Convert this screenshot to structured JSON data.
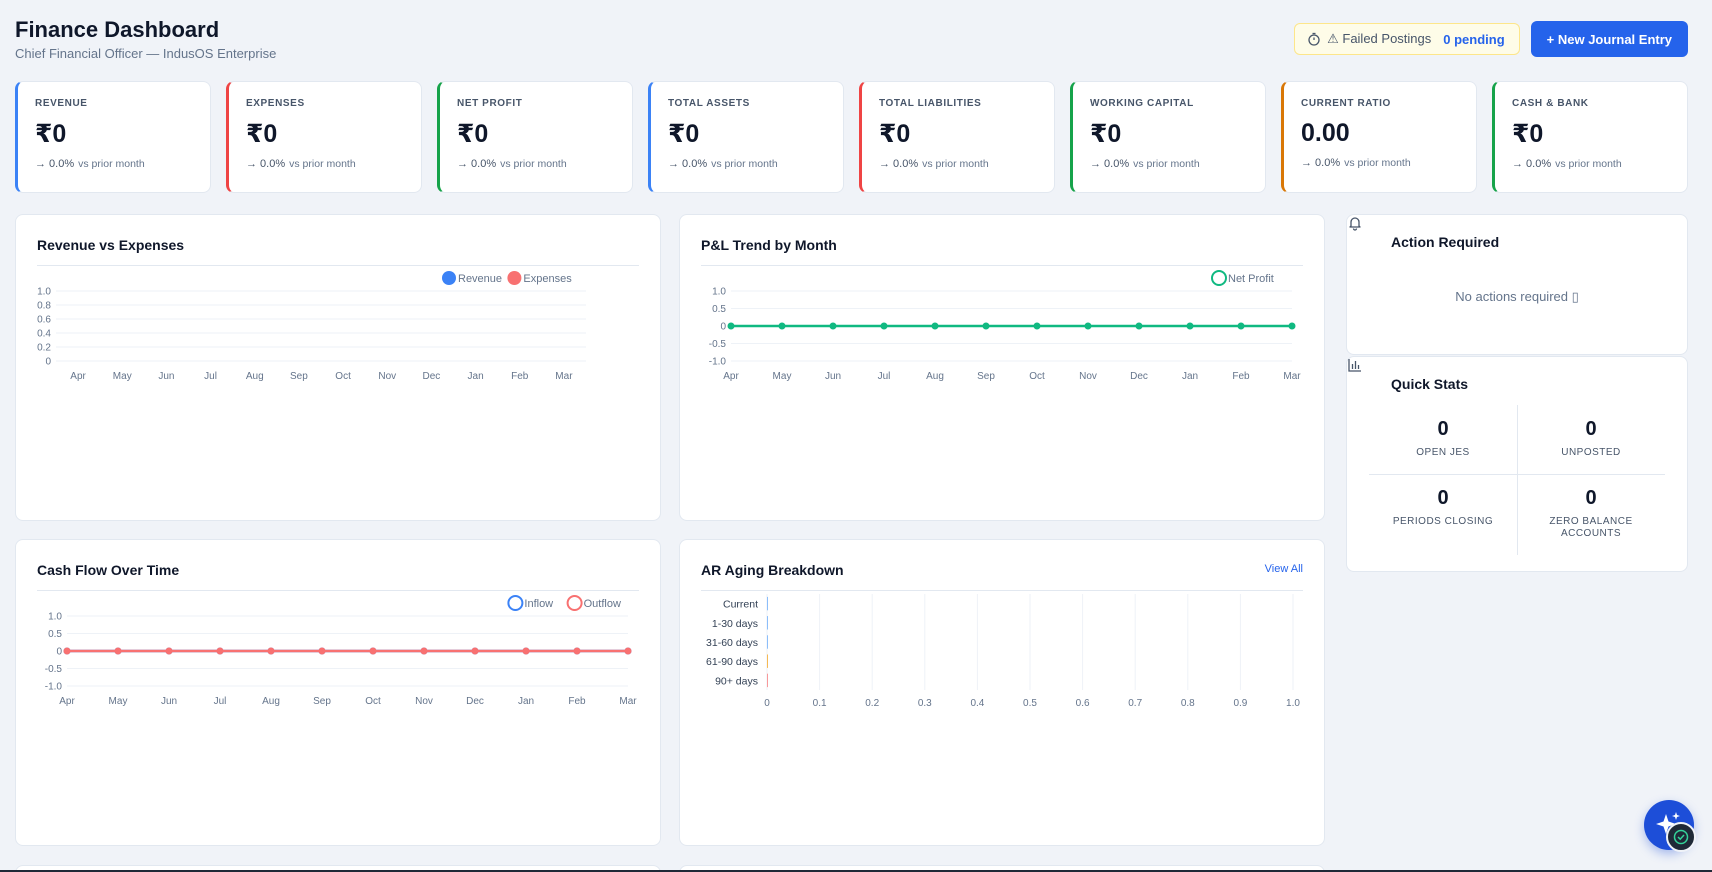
{
  "header": {
    "title": "Finance Dashboard",
    "subtitle": "Chief Financial Officer — IndusOS Enterprise",
    "failed_label": "⚠ Failed Postings",
    "failed_count": "0 pending",
    "new_entry_label": "+ New Journal Entry"
  },
  "kpis": [
    {
      "label": "REVENUE",
      "value": "₹0",
      "change": "→ 0.0%",
      "vs": "vs prior month",
      "accent": "#3b82f6"
    },
    {
      "label": "EXPENSES",
      "value": "₹0",
      "change": "→ 0.0%",
      "vs": "vs prior month",
      "accent": "#ef4444"
    },
    {
      "label": "NET PROFIT",
      "value": "₹0",
      "change": "→ 0.0%",
      "vs": "vs prior month",
      "accent": "#16a34a"
    },
    {
      "label": "TOTAL ASSETS",
      "value": "₹0",
      "change": "→ 0.0%",
      "vs": "vs prior month",
      "accent": "#3b82f6"
    },
    {
      "label": "TOTAL LIABILITIES",
      "value": "₹0",
      "change": "→ 0.0%",
      "vs": "vs prior month",
      "accent": "#ef4444"
    },
    {
      "label": "WORKING CAPITAL",
      "value": "₹0",
      "change": "→ 0.0%",
      "vs": "vs prior month",
      "accent": "#16a34a"
    },
    {
      "label": "CURRENT RATIO",
      "value": "0.00",
      "change": "→ 0.0%",
      "vs": "vs prior month",
      "accent": "#d97706"
    },
    {
      "label": "CASH & BANK",
      "value": "₹0",
      "change": "→ 0.0%",
      "vs": "vs prior month",
      "accent": "#16a34a"
    }
  ],
  "cards": {
    "rev_exp_title": "Revenue vs Expenses",
    "pl_title": "P&L Trend by Month",
    "cash_title": "Cash Flow Over Time",
    "ar_title": "AR Aging Breakdown",
    "ar_view_all": "View All"
  },
  "action_required": {
    "title": "Action Required",
    "empty": "No actions required ▯"
  },
  "quick_stats": {
    "title": "Quick Stats",
    "items": [
      {
        "value": "0",
        "label": "OPEN JES"
      },
      {
        "value": "0",
        "label": "UNPOSTED"
      },
      {
        "value": "0",
        "label": "PERIODS CLOSING"
      },
      {
        "value": "0",
        "label": "ZERO BALANCE ACCOUNTS"
      }
    ]
  },
  "colors": {
    "blue": "#3b82f6",
    "red": "#f87171",
    "green": "#10b981",
    "primary": "#2563eb"
  },
  "chart_data": [
    {
      "type": "bar",
      "title": "Revenue vs Expenses",
      "categories": [
        "Apr",
        "May",
        "Jun",
        "Jul",
        "Aug",
        "Sep",
        "Oct",
        "Nov",
        "Dec",
        "Jan",
        "Feb",
        "Mar"
      ],
      "series": [
        {
          "name": "Revenue",
          "values": [
            0,
            0,
            0,
            0,
            0,
            0,
            0,
            0,
            0,
            0,
            0,
            0
          ]
        },
        {
          "name": "Expenses",
          "values": [
            0,
            0,
            0,
            0,
            0,
            0,
            0,
            0,
            0,
            0,
            0,
            0
          ]
        }
      ],
      "yticks": [
        "1.0",
        "0.8",
        "0.6",
        "0.4",
        "0.2",
        "0"
      ],
      "ylim": [
        0,
        1.0
      ],
      "legend": "top-right"
    },
    {
      "type": "line",
      "title": "P&L Trend by Month",
      "categories": [
        "Apr",
        "May",
        "Jun",
        "Jul",
        "Aug",
        "Sep",
        "Oct",
        "Nov",
        "Dec",
        "Jan",
        "Feb",
        "Mar"
      ],
      "series": [
        {
          "name": "Net Profit",
          "values": [
            0,
            0,
            0,
            0,
            0,
            0,
            0,
            0,
            0,
            0,
            0,
            0
          ]
        }
      ],
      "yticks": [
        "1.0",
        "0.5",
        "0",
        "-0.5",
        "-1.0"
      ],
      "ylim": [
        -1.0,
        1.0
      ],
      "legend": "top-right"
    },
    {
      "type": "line",
      "title": "Cash Flow Over Time",
      "categories": [
        "Apr",
        "May",
        "Jun",
        "Jul",
        "Aug",
        "Sep",
        "Oct",
        "Nov",
        "Dec",
        "Jan",
        "Feb",
        "Mar"
      ],
      "series": [
        {
          "name": "Inflow",
          "values": [
            0,
            0,
            0,
            0,
            0,
            0,
            0,
            0,
            0,
            0,
            0,
            0
          ]
        },
        {
          "name": "Outflow",
          "values": [
            0,
            0,
            0,
            0,
            0,
            0,
            0,
            0,
            0,
            0,
            0,
            0
          ]
        }
      ],
      "yticks": [
        "1.0",
        "0.5",
        "0",
        "-0.5",
        "-1.0"
      ],
      "ylim": [
        -1.0,
        1.0
      ],
      "legend": "top-right"
    },
    {
      "type": "bar",
      "title": "AR Aging Breakdown",
      "orientation": "horizontal",
      "categories": [
        "Current",
        "1-30 days",
        "31-60 days",
        "61-90 days",
        "90+ days"
      ],
      "values": [
        0,
        0,
        0,
        0,
        0
      ],
      "xticks": [
        "0",
        "0.1",
        "0.2",
        "0.3",
        "0.4",
        "0.5",
        "0.6",
        "0.7",
        "0.8",
        "0.9",
        "1.0"
      ],
      "xlim": [
        0,
        1.0
      ]
    }
  ]
}
